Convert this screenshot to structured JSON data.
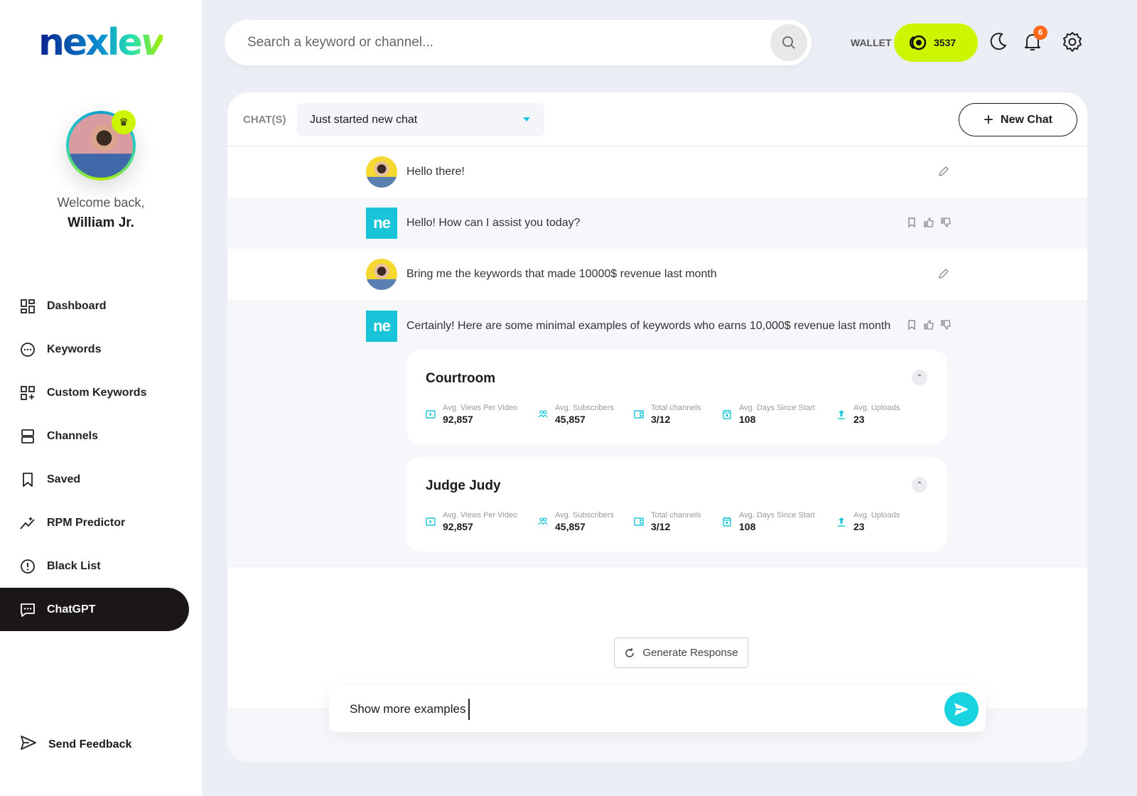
{
  "brand": {
    "logo_text": "nexlev",
    "accent": "#19c4d8",
    "wallet_color": "#ccf500"
  },
  "user": {
    "welcome": "Welcome back,",
    "name": "William Jr."
  },
  "nav": [
    {
      "label": "Dashboard",
      "icon": "dashboard-icon"
    },
    {
      "label": "Keywords",
      "icon": "keywords-icon"
    },
    {
      "label": "Custom Keywords",
      "icon": "custom-keywords-icon"
    },
    {
      "label": "Channels",
      "icon": "channels-icon"
    },
    {
      "label": "Saved",
      "icon": "bookmark-icon"
    },
    {
      "label": "RPM Predictor",
      "icon": "chart-line-icon"
    },
    {
      "label": "Black List",
      "icon": "alert-circle-icon"
    },
    {
      "label": "ChatGPT",
      "icon": "chat-icon",
      "active": true
    }
  ],
  "feedback": "Send Feedback",
  "search": {
    "placeholder": "Search a keyword or channel..."
  },
  "wallet": {
    "label": "WALLET",
    "amount": "3537"
  },
  "notifications": {
    "count": "6"
  },
  "chat": {
    "chats_label": "CHAT(S)",
    "selected_chat": "Just started new chat",
    "new_chat": "New Chat",
    "messages": [
      {
        "role": "user",
        "text": "Hello there!"
      },
      {
        "role": "bot",
        "text": "Hello! How can I assist you today?"
      },
      {
        "role": "user",
        "text": "Bring me the keywords that made 10000$ revenue last month"
      },
      {
        "role": "bot",
        "text": "Certainly! Here are some minimal examples of keywords who earns 10,000$ revenue last month"
      }
    ],
    "bot_avatar": "ne",
    "cards": [
      {
        "title": "Courtroom",
        "stats": [
          {
            "label": "Avg. Views Per Video",
            "value": "92,857",
            "icon": "play-icon"
          },
          {
            "label": "Avg. Subscribers",
            "value": "45,857",
            "icon": "users-icon"
          },
          {
            "label": "Total channels",
            "value": "3/12",
            "icon": "channel-icon"
          },
          {
            "label": "Avg. Days Since Start",
            "value": "108",
            "icon": "calendar-icon"
          },
          {
            "label": "Avg. Uploads",
            "value": "23",
            "icon": "upload-icon"
          }
        ]
      },
      {
        "title": "Judge Judy",
        "stats": [
          {
            "label": "Avg. Views Per Video",
            "value": "92,857",
            "icon": "play-icon"
          },
          {
            "label": "Avg. Subscribers",
            "value": "45,857",
            "icon": "users-icon"
          },
          {
            "label": "Total channels",
            "value": "3/12",
            "icon": "channel-icon"
          },
          {
            "label": "Avg. Days Since Start",
            "value": "108",
            "icon": "calendar-icon"
          },
          {
            "label": "Avg. Uploads",
            "value": "23",
            "icon": "upload-icon"
          }
        ]
      }
    ],
    "generate": "Generate Response",
    "input_value": "Show more examples"
  }
}
